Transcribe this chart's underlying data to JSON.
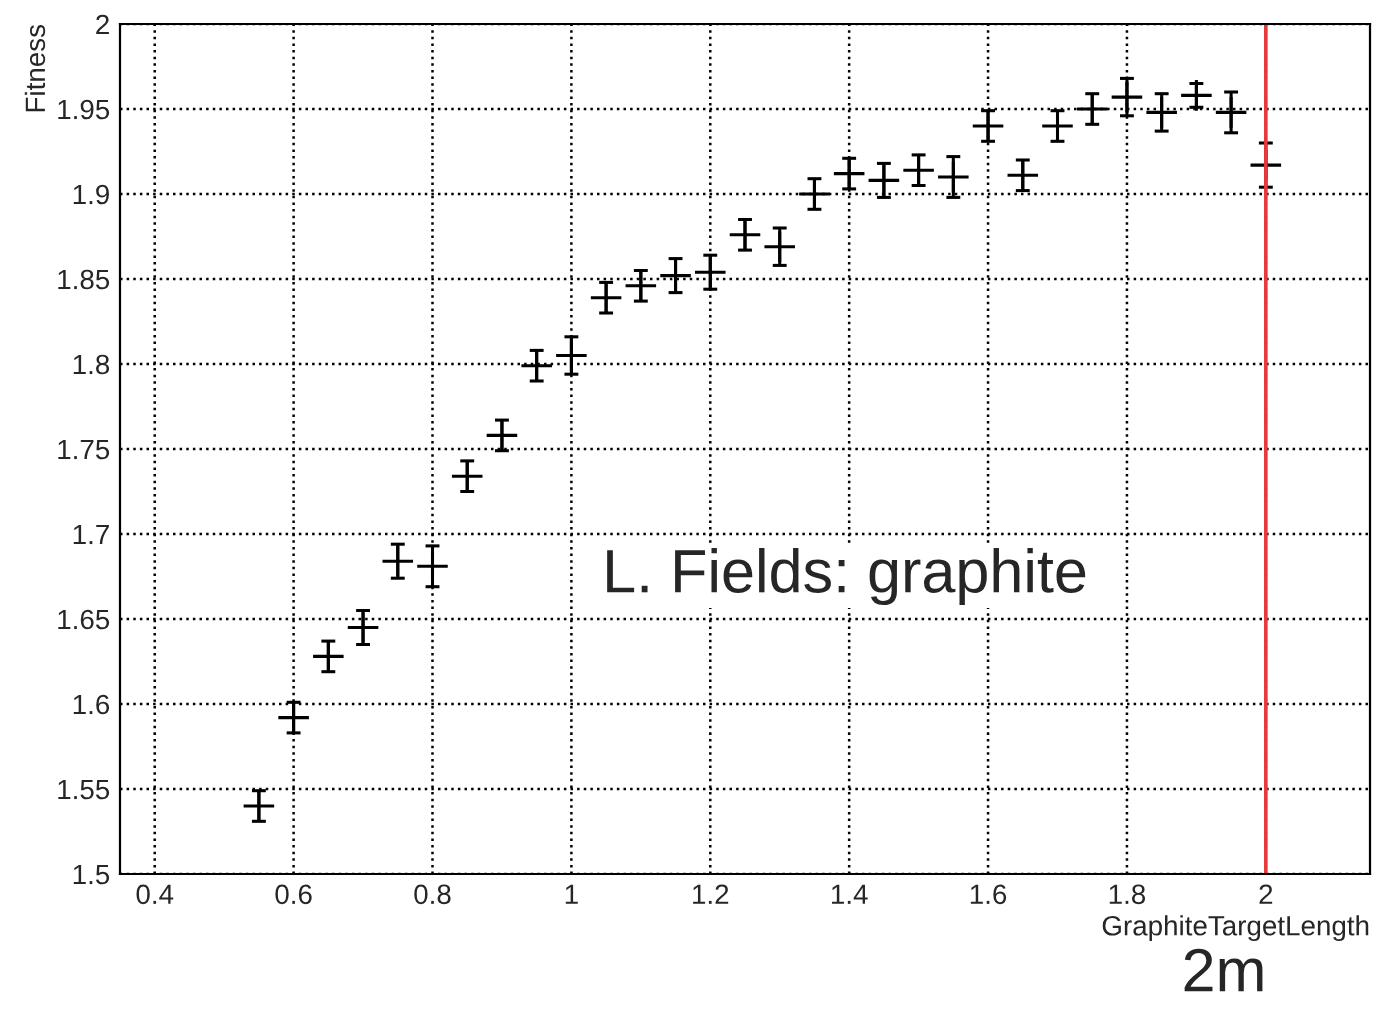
{
  "chart_data": {
    "type": "scatter",
    "xlabel": "GraphiteTargetLength",
    "ylabel": "Fitness",
    "x": [
      0.55,
      0.6,
      0.65,
      0.7,
      0.75,
      0.8,
      0.85,
      0.9,
      0.95,
      1.0,
      1.05,
      1.1,
      1.15,
      1.2,
      1.25,
      1.3,
      1.35,
      1.4,
      1.45,
      1.5,
      1.55,
      1.6,
      1.65,
      1.7,
      1.75,
      1.8,
      1.85,
      1.9,
      1.95,
      2.0
    ],
    "series": [
      {
        "color": "#000000",
        "values": [
          1.54,
          1.592,
          1.628,
          1.645,
          1.684,
          1.681,
          1.734,
          1.758,
          1.799,
          1.805,
          1.839,
          1.846,
          1.852,
          1.854,
          1.876,
          1.869,
          1.9,
          1.912,
          1.908,
          1.914,
          1.91,
          1.94,
          1.911,
          1.94,
          1.95,
          1.957,
          1.948,
          1.958,
          1.948,
          1.917
        ],
        "errors": [
          0.009,
          0.009,
          0.009,
          0.01,
          0.01,
          0.012,
          0.009,
          0.009,
          0.009,
          0.011,
          0.009,
          0.009,
          0.01,
          0.01,
          0.009,
          0.011,
          0.009,
          0.009,
          0.01,
          0.009,
          0.012,
          0.009,
          0.009,
          0.009,
          0.009,
          0.011,
          0.011,
          0.007,
          0.012,
          0.013
        ]
      }
    ],
    "marker": "cross",
    "xlim": [
      0.35,
      2.15
    ],
    "ylim": [
      1.5,
      2.0
    ],
    "xticks": [
      0.4,
      0.6,
      0.8,
      1,
      1.2,
      1.4,
      1.6,
      1.8,
      2
    ],
    "yticks": [
      1.5,
      1.55,
      1.6,
      1.65,
      1.7,
      1.75,
      1.8,
      1.85,
      1.9,
      1.95,
      2
    ],
    "grid": true,
    "ref_lines": [
      {
        "axis": "x",
        "value": 2,
        "color": "#e8383b"
      }
    ],
    "annotations": [
      "L. Fields: graphite",
      "2m"
    ]
  }
}
